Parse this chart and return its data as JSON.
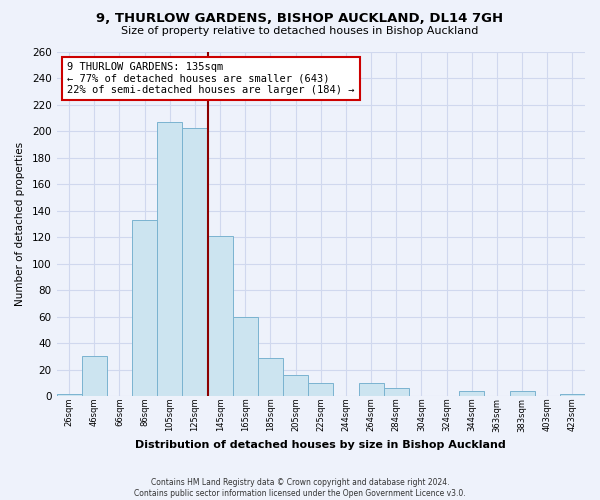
{
  "title": "9, THURLOW GARDENS, BISHOP AUCKLAND, DL14 7GH",
  "subtitle": "Size of property relative to detached houses in Bishop Auckland",
  "xlabel": "Distribution of detached houses by size in Bishop Auckland",
  "ylabel": "Number of detached properties",
  "footer_line1": "Contains HM Land Registry data © Crown copyright and database right 2024.",
  "footer_line2": "Contains public sector information licensed under the Open Government Licence v3.0.",
  "bar_labels": [
    "26sqm",
    "46sqm",
    "66sqm",
    "86sqm",
    "105sqm",
    "125sqm",
    "145sqm",
    "165sqm",
    "185sqm",
    "205sqm",
    "225sqm",
    "244sqm",
    "264sqm",
    "284sqm",
    "304sqm",
    "324sqm",
    "344sqm",
    "363sqm",
    "383sqm",
    "403sqm",
    "423sqm"
  ],
  "bar_values": [
    2,
    30,
    0,
    133,
    207,
    202,
    121,
    60,
    29,
    16,
    10,
    0,
    10,
    6,
    0,
    0,
    4,
    0,
    4,
    0,
    2
  ],
  "bar_color": "#cce4f0",
  "bar_edge_color": "#7ab3d0",
  "vline_color": "#8b0000",
  "ylim": [
    0,
    260
  ],
  "yticks": [
    0,
    20,
    40,
    60,
    80,
    100,
    120,
    140,
    160,
    180,
    200,
    220,
    240,
    260
  ],
  "annotation_title": "9 THURLOW GARDENS: 135sqm",
  "annotation_line1": "← 77% of detached houses are smaller (643)",
  "annotation_line2": "22% of semi-detached houses are larger (184) →",
  "annotation_box_color": "#ffffff",
  "annotation_box_edge": "#cc0000",
  "bg_color": "#eef2fb",
  "grid_color": "#d0d8ee",
  "vline_x_idx": 6
}
